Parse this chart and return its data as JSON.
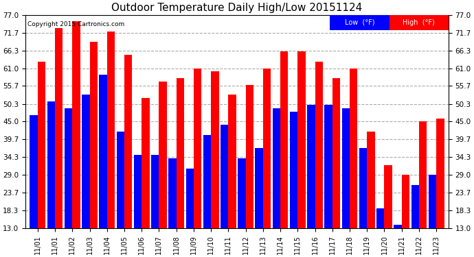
{
  "title": "Outdoor Temperature Daily High/Low 20151124",
  "copyright": "Copyright 2015 Cartronics.com",
  "legend_low": "Low  (°F)",
  "legend_high": "High  (°F)",
  "low_color": "#0000ff",
  "high_color": "#ff0000",
  "background_color": "#ffffff",
  "plot_bg_color": "#ffffff",
  "ylim": [
    13.0,
    77.0
  ],
  "yticks": [
    13.0,
    18.3,
    23.7,
    29.0,
    34.3,
    39.7,
    45.0,
    50.3,
    55.7,
    61.0,
    66.3,
    71.7,
    77.0
  ],
  "labels": [
    "11/01",
    "11/01",
    "11/02",
    "11/03",
    "11/04",
    "11/05",
    "11/06",
    "11/07",
    "11/08",
    "11/09",
    "11/10",
    "11/11",
    "11/12",
    "11/13",
    "11/14",
    "11/15",
    "11/16",
    "11/17",
    "11/18",
    "11/19",
    "11/20",
    "11/21",
    "11/22",
    "11/23"
  ],
  "highs": [
    63.0,
    73.0,
    75.0,
    69.0,
    72.0,
    65.0,
    52.0,
    57.0,
    58.0,
    61.0,
    60.0,
    53.0,
    56.0,
    61.0,
    66.0,
    66.0,
    63.0,
    58.0,
    61.0,
    42.0,
    32.0,
    29.0,
    45.0,
    46.0
  ],
  "lows": [
    47.0,
    51.0,
    49.0,
    53.0,
    59.0,
    42.0,
    35.0,
    35.0,
    34.0,
    31.0,
    41.0,
    44.0,
    34.0,
    37.0,
    49.0,
    48.0,
    50.0,
    50.0,
    49.0,
    37.0,
    19.0,
    14.0,
    26.0,
    29.0
  ],
  "legend_bg": "#000080",
  "legend_red_bg": "#ff0000"
}
